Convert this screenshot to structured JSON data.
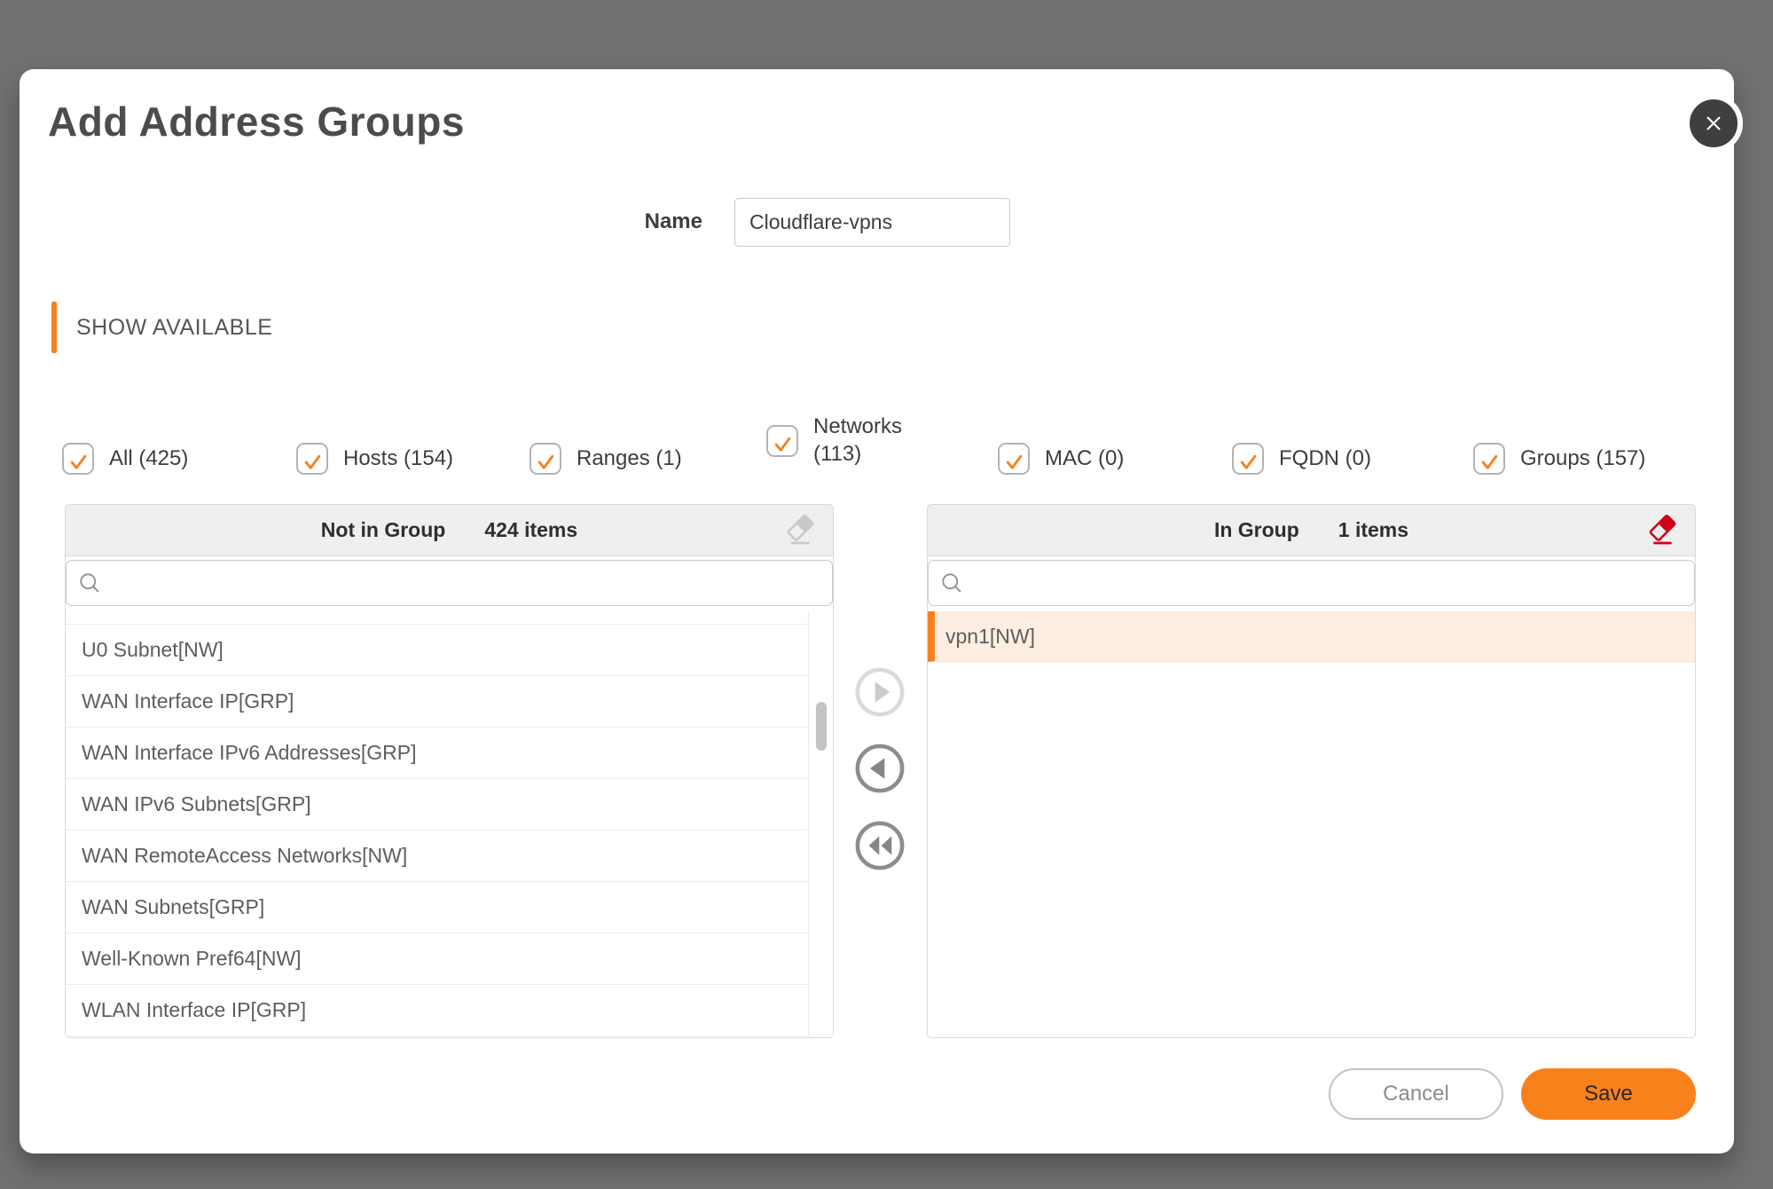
{
  "modal": {
    "title": "Add Address Groups"
  },
  "name_field": {
    "label": "Name",
    "value": "Cloudflare-vpns"
  },
  "section": {
    "show_available": "SHOW AVAILABLE"
  },
  "filters": [
    {
      "label": "All (425)",
      "checked": true
    },
    {
      "label": "Hosts (154)",
      "checked": true
    },
    {
      "label": "Ranges (1)",
      "checked": true
    },
    {
      "label": "Networks (113)",
      "checked": true
    },
    {
      "label": "MAC (0)",
      "checked": true
    },
    {
      "label": "FQDN (0)",
      "checked": true
    },
    {
      "label": "Groups (157)",
      "checked": true
    }
  ],
  "left_panel": {
    "title": "Not in Group",
    "count": "424 items",
    "search_value": "",
    "items": [
      "U0 Subnet[NW]",
      "WAN Interface IP[GRP]",
      "WAN Interface IPv6 Addresses[GRP]",
      "WAN IPv6 Subnets[GRP]",
      "WAN RemoteAccess Networks[NW]",
      "WAN Subnets[GRP]",
      "Well-Known Pref64[NW]",
      "WLAN Interface IP[GRP]"
    ]
  },
  "right_panel": {
    "title": "In Group",
    "count": "1 items",
    "search_value": "",
    "items": [
      {
        "label": "vpn1[NW]",
        "selected": true
      }
    ]
  },
  "footer": {
    "cancel_label": "Cancel",
    "save_label": "Save"
  },
  "colors": {
    "accent": "#f7811f",
    "save_button": "#f8811c",
    "eraser_red": "#d0021b",
    "selected_row_bg": "#fdeee1"
  },
  "icons": {
    "close": "close-icon",
    "search": "search-icon",
    "eraser": "eraser-icon",
    "checkmark": "check-icon",
    "move_right": "arrow-right-circle-icon",
    "move_left": "arrow-left-circle-icon",
    "move_all_left": "double-arrow-left-circle-icon"
  }
}
